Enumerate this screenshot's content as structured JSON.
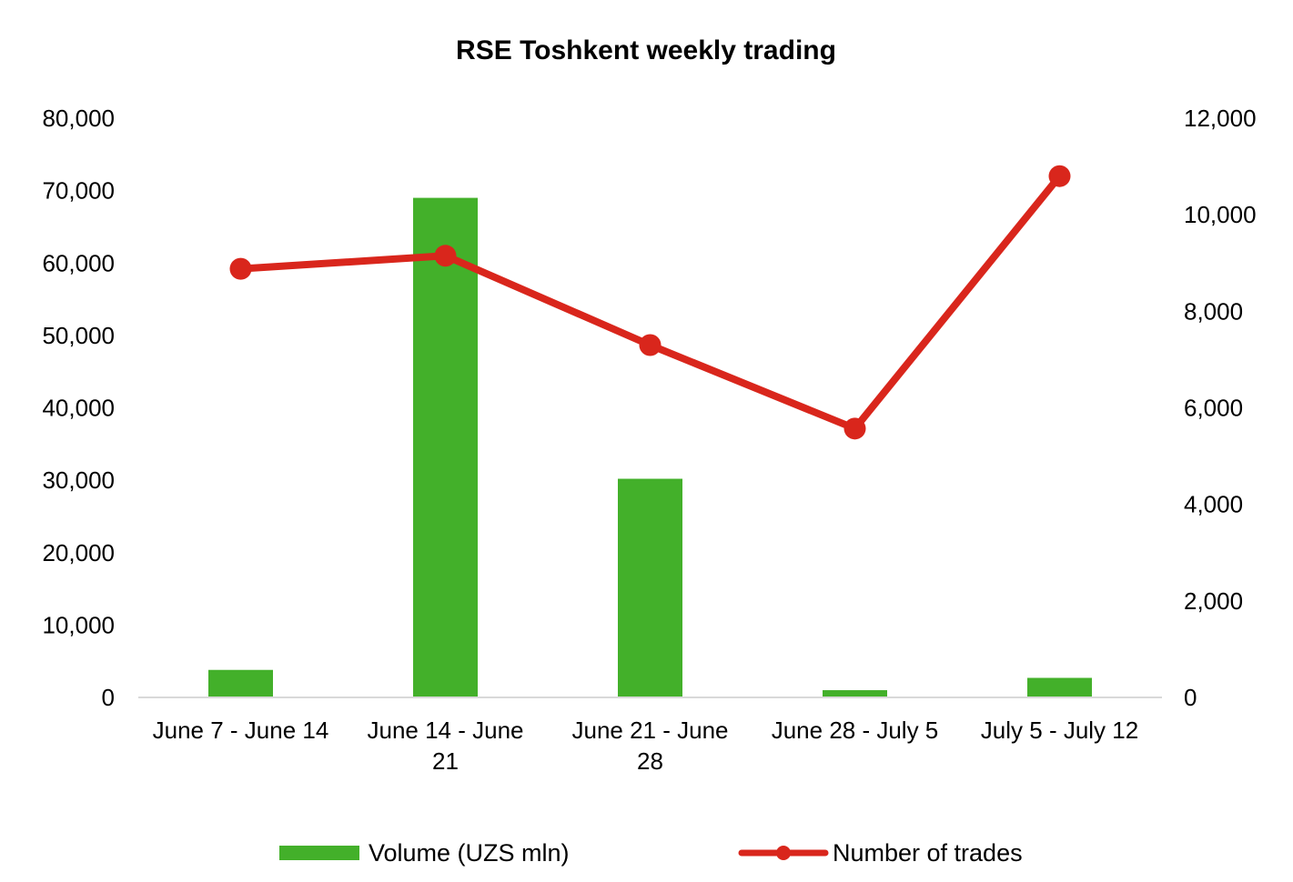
{
  "chart_data": {
    "type": "bar",
    "title": "RSE Toshkent weekly trading",
    "categories": [
      [
        "June 7 - June 14"
      ],
      [
        "June 14 - June",
        "21"
      ],
      [
        "June 21 - June",
        "28"
      ],
      [
        "June 28 - July 5"
      ],
      [
        "July 5 - July 12"
      ]
    ],
    "series": [
      {
        "name": "Volume (UZS mln)",
        "type": "bar",
        "axis": "left",
        "color": "#43B02A",
        "values": [
          3800,
          69000,
          30200,
          1000,
          2700
        ]
      },
      {
        "name": "Number of trades",
        "type": "line",
        "axis": "right",
        "color": "#D9261C",
        "values": [
          8880,
          9150,
          7300,
          5570,
          10800
        ]
      }
    ],
    "y_left": {
      "min": 0,
      "max": 80000,
      "step": 10000,
      "tick_labels": [
        "0",
        "10,000",
        "20,000",
        "30,000",
        "40,000",
        "50,000",
        "60,000",
        "70,000",
        "80,000"
      ]
    },
    "y_right": {
      "min": 0,
      "max": 12000,
      "step": 2000,
      "tick_labels": [
        "0",
        "2,000",
        "4,000",
        "6,000",
        "8,000",
        "10,000",
        "12,000"
      ]
    },
    "grid": false,
    "legend_position": "bottom"
  }
}
